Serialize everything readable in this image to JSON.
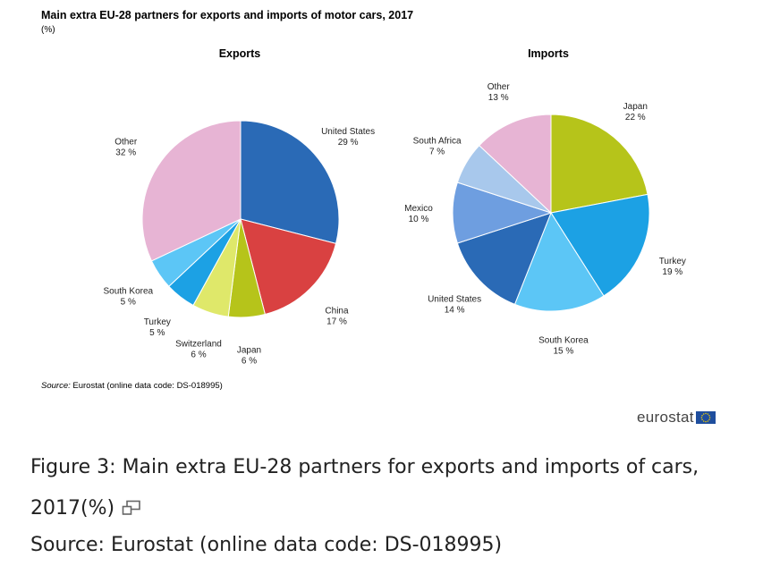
{
  "header": {
    "title": "Main extra EU-28 partners for exports and imports of motor cars, 2017",
    "unit": "(%)"
  },
  "chart_data": [
    {
      "type": "pie",
      "title": "Exports",
      "unit": "%",
      "slices": [
        {
          "label": "United States",
          "value": 29,
          "color": "#2a6ab6"
        },
        {
          "label": "China",
          "value": 17,
          "color": "#d94141"
        },
        {
          "label": "Japan",
          "value": 6,
          "color": "#b6c41a"
        },
        {
          "label": "Switzerland",
          "value": 6,
          "color": "#dfe86a"
        },
        {
          "label": "Turkey",
          "value": 5,
          "color": "#1ca1e4"
        },
        {
          "label": "South Korea",
          "value": 5,
          "color": "#5cc6f6"
        },
        {
          "label": "Other",
          "value": 32,
          "color": "#e7b4d4"
        }
      ]
    },
    {
      "type": "pie",
      "title": "Imports",
      "unit": "%",
      "slices": [
        {
          "label": "Japan",
          "value": 22,
          "color": "#b6c41a"
        },
        {
          "label": "Turkey",
          "value": 19,
          "color": "#1ca1e4"
        },
        {
          "label": "South Korea",
          "value": 15,
          "color": "#5cc6f6"
        },
        {
          "label": "United States",
          "value": 14,
          "color": "#2a6ab6"
        },
        {
          "label": "Mexico",
          "value": 10,
          "color": "#6e9ee0"
        },
        {
          "label": "South Africa",
          "value": 7,
          "color": "#a8c8ec"
        },
        {
          "label": "Other",
          "value": 13,
          "color": "#e7b4d4"
        }
      ]
    }
  ],
  "source": {
    "prefix": "Source:",
    "text": "Eurostat (online data code: DS-018995)"
  },
  "logo": {
    "text": "eurostat",
    "flag_color": "#1f4e9e",
    "star_color": "#f5d000"
  },
  "caption": {
    "figure": "Figure 3: Main extra EU-28 partners for exports and imports of cars, 2017(%)",
    "source": "Source: Eurostat (online data code: DS-018995)",
    "icon": "expand-icon"
  }
}
